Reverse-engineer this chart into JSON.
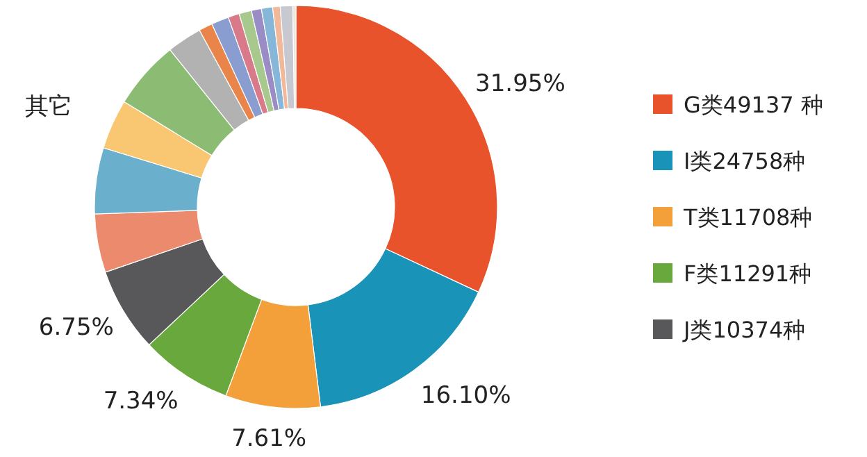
{
  "chart_data": {
    "type": "donut",
    "legend": "right",
    "categories": [
      "G类49137 种",
      "I类24758种",
      "T类11708种",
      "F类11291种",
      "J类10374种",
      null,
      null,
      null,
      null,
      null,
      null,
      null,
      null,
      null,
      null,
      null,
      null,
      null,
      null
    ],
    "values": [
      31.95,
      16.1,
      7.61,
      7.34,
      6.75,
      4.7,
      5.3,
      4.0,
      5.5,
      2.8,
      1.1,
      1.4,
      0.9,
      1.0,
      0.8,
      0.9,
      0.6,
      1.0,
      0.25
    ],
    "value_labels": [
      "31.95%",
      "16.10%",
      "7.61%",
      "7.34%",
      "6.75%",
      null,
      null,
      null,
      null,
      null,
      null,
      null,
      null,
      null,
      null,
      null,
      null,
      null,
      null
    ],
    "colors": [
      "#e8532b",
      "#1a93b8",
      "#f3a03a",
      "#68a83c",
      "#58585a",
      "#ec8a6e",
      "#6aafcc",
      "#f9c771",
      "#8cbb74",
      "#b2b2b2",
      "#e9854a",
      "#8a9dd0",
      "#d97a8a",
      "#a8c98e",
      "#9a8cc4",
      "#86b7d8",
      "#f2b89a",
      "#c8c8d0",
      "#efe6dc"
    ],
    "annotations": [
      "其它"
    ]
  }
}
